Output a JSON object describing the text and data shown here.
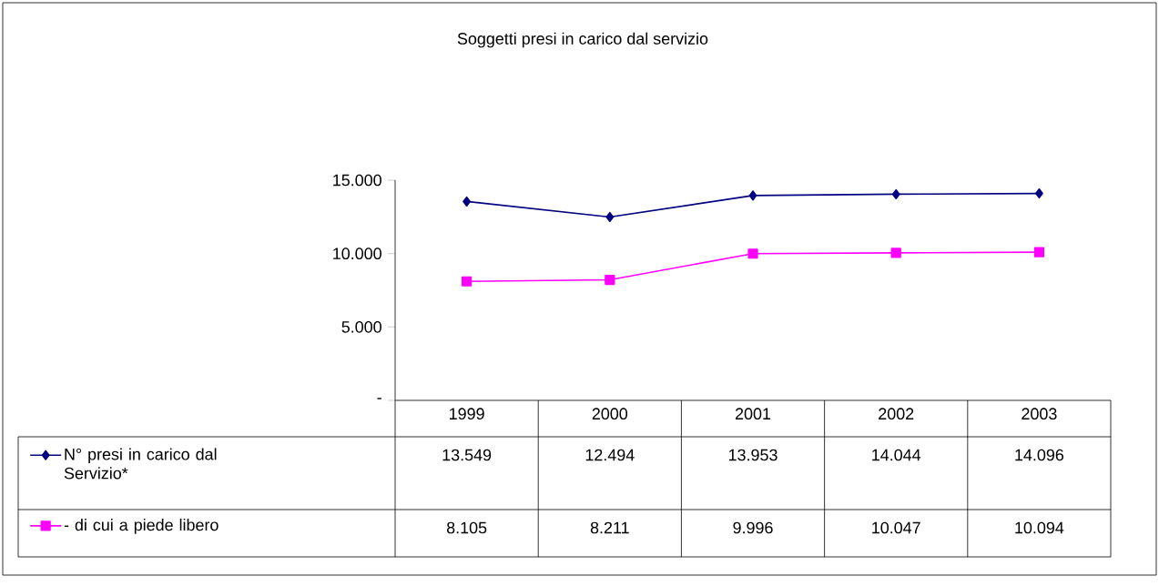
{
  "chart_data": {
    "type": "line",
    "title": "Soggetti presi in carico dal servizio",
    "categories": [
      "1999",
      "2000",
      "2001",
      "2002",
      "2003"
    ],
    "series": [
      {
        "name": "N° presi in carico dal Servizio*",
        "color": "#000080",
        "marker": "diamond",
        "values": [
          13549,
          12494,
          13953,
          14044,
          14096
        ],
        "value_labels": [
          "13.549",
          "12.494",
          "13.953",
          "14.044",
          "14.096"
        ]
      },
      {
        "name": "- di cui a piede libero",
        "color": "#ff00ff",
        "marker": "square",
        "values": [
          8105,
          8211,
          9996,
          10047,
          10094
        ],
        "value_labels": [
          "8.105",
          "8.211",
          "9.996",
          "10.047",
          "10.094"
        ]
      }
    ],
    "ylim": [
      0,
      15000
    ],
    "yticks": [
      {
        "value": 0,
        "label": "-"
      },
      {
        "value": 5000,
        "label": "5.000"
      },
      {
        "value": 10000,
        "label": "10.000"
      },
      {
        "value": 15000,
        "label": "15.000"
      }
    ],
    "legend": "bottom"
  }
}
